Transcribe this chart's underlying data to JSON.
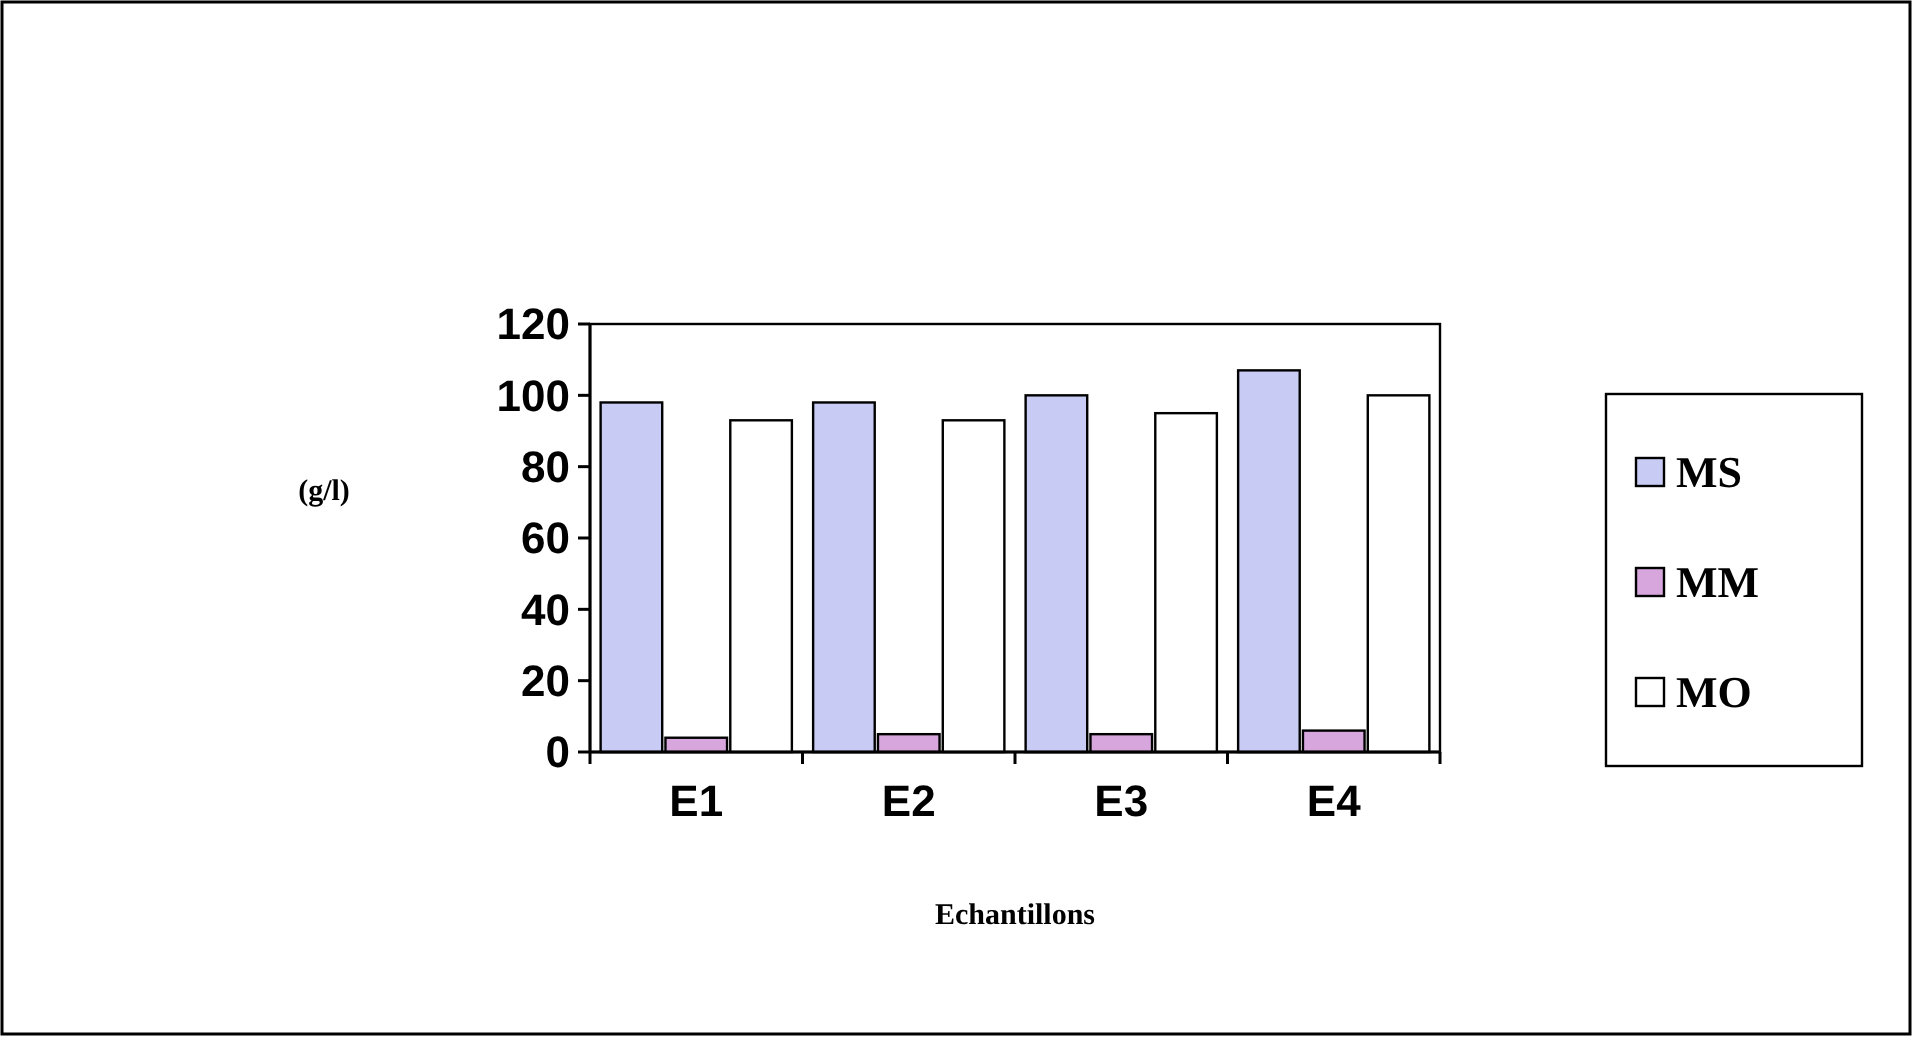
{
  "chart_data": {
    "type": "bar",
    "categories": [
      "E1",
      "E2",
      "E3",
      "E4"
    ],
    "series": [
      {
        "name": "MS",
        "color": "#c8ccf4",
        "values": [
          98,
          98,
          100,
          107
        ]
      },
      {
        "name": "MM",
        "color": "#d7a6dc",
        "values": [
          4,
          5,
          5,
          6
        ]
      },
      {
        "name": "MO",
        "color": "#ffffff",
        "values": [
          93,
          93,
          95,
          100
        ]
      }
    ],
    "ylabel": "(g/l)",
    "xlabel": "Echantillons",
    "ylim": [
      0,
      120
    ],
    "yticks": [
      0,
      20,
      40,
      60,
      80,
      100,
      120
    ],
    "grid": false,
    "legend": "right"
  }
}
